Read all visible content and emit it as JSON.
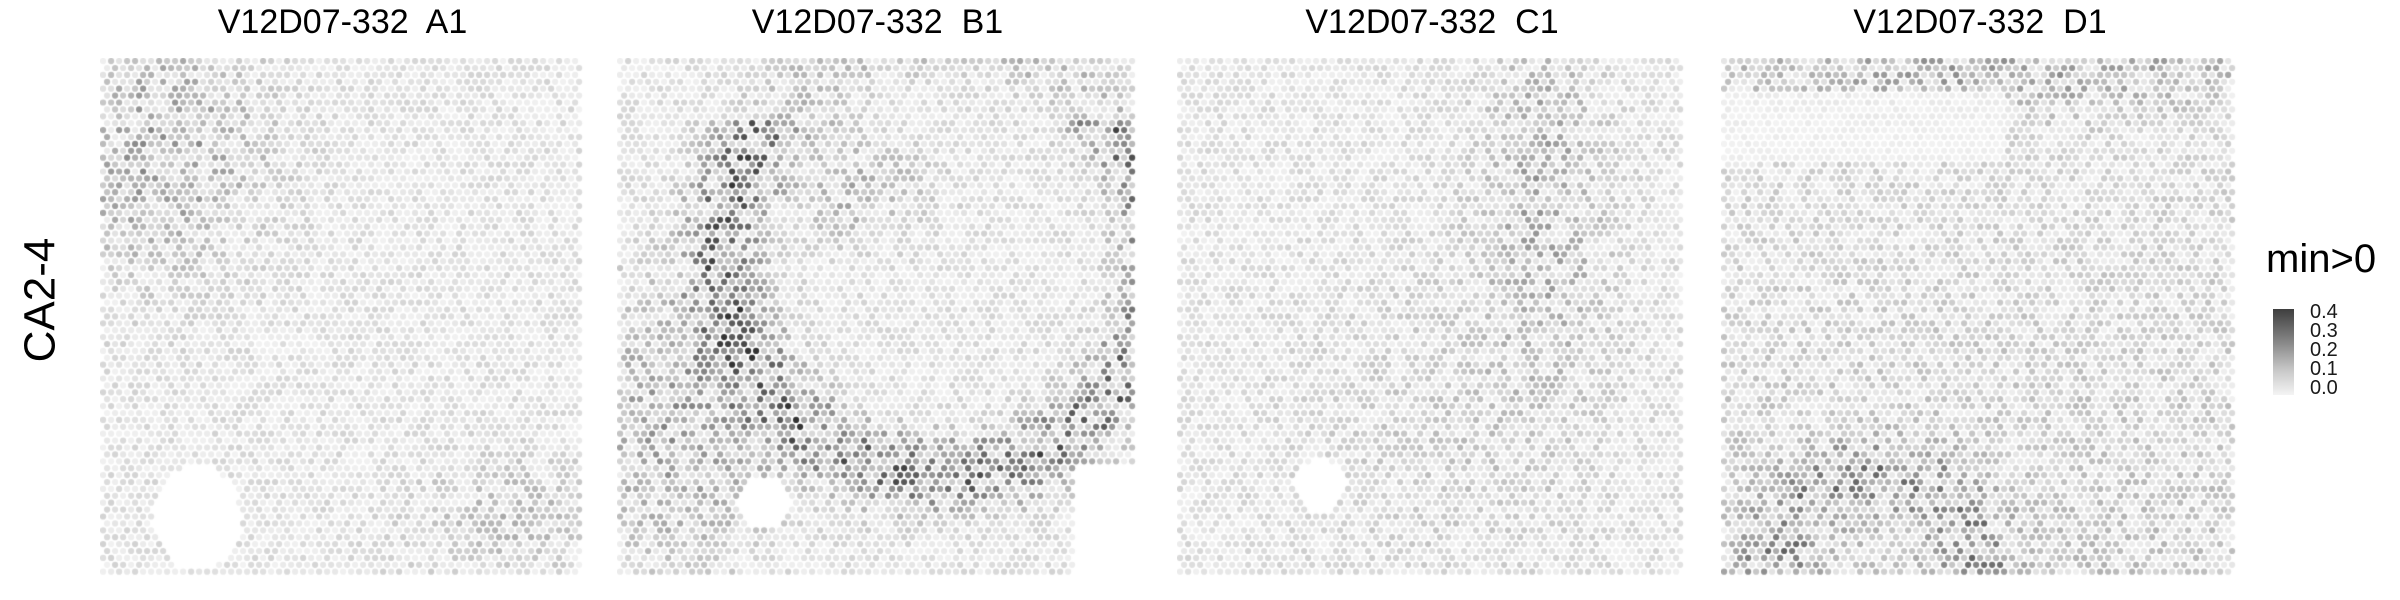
{
  "chart_data": {
    "type": "heatmap",
    "row_label": "CA2-4",
    "legend": {
      "title": "min>0",
      "ticks": [
        "0.4",
        "0.3",
        "0.2",
        "0.1",
        "0.0"
      ],
      "tick_values": [
        0.4,
        0.3,
        0.2,
        0.1,
        0.0
      ],
      "range": [
        0,
        0.45
      ],
      "low_color": "#f4f4f4",
      "high_color": "#333333"
    },
    "panels": [
      {
        "title": "V12D07-332  A1",
        "max_value": 0.3
      },
      {
        "title": "V12D07-332  B1",
        "max_value": 0.45
      },
      {
        "title": "V12D07-332  C1",
        "max_value": 0.35
      },
      {
        "title": "V12D07-332  D1",
        "max_value": 0.35
      }
    ]
  }
}
